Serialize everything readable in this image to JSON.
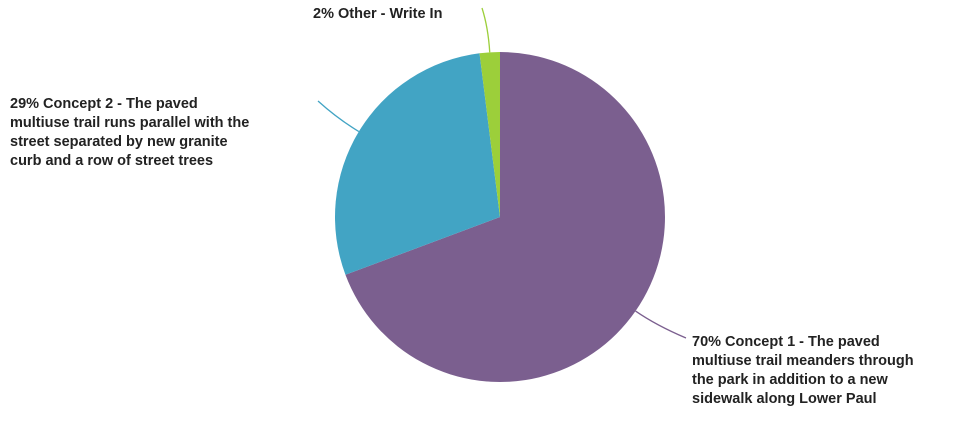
{
  "chart_data": {
    "type": "pie",
    "title": "",
    "slices": [
      {
        "label": "Concept 1 - The paved multiuse trail meanders through the park in addition to a new sidewalk along Lower Paul",
        "percent_label": "70%",
        "value": 70,
        "color": "#7b5f8f"
      },
      {
        "label": "Concept 2 - The paved multiuse trail runs parallel with the street separated by new granite curb and a row of street trees",
        "percent_label": "29%",
        "value": 29,
        "color": "#42a4c4"
      },
      {
        "label": "Other - Write In",
        "percent_label": "2%",
        "value": 2,
        "color": "#9ccf3a"
      }
    ]
  },
  "labels": {
    "slice1": [
      "70% Concept 1 - The paved",
      "multiuse trail meanders through",
      "the park in addition to a new",
      "sidewalk along Lower Paul"
    ],
    "slice2": [
      "29% Concept 2 - The paved",
      "multiuse trail runs parallel with the",
      "street separated by new granite",
      "curb and a row of street trees"
    ],
    "slice3": [
      "2% Other - Write In"
    ]
  }
}
